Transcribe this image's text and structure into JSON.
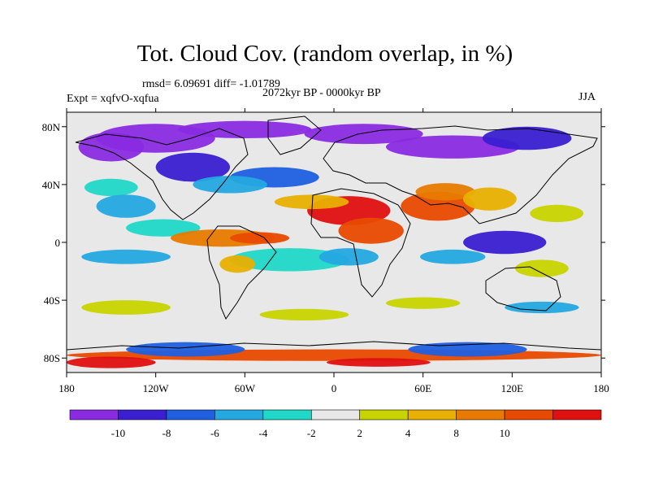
{
  "title": "Tot. Cloud Cov. (random overlap, in %)",
  "stats": "rmsd= 6.09691 diff= -1.01789",
  "period": "2072kyr BP - 0000kyr BP",
  "experiment": "Expt = xqfvO-xqfua",
  "season": "JJA",
  "map": {
    "projection": "cylindrical-equidistant",
    "lon_range": [
      -180,
      180
    ],
    "lat_range": [
      -90,
      90
    ],
    "lon_ticks": [
      {
        "value": -180,
        "label": "180"
      },
      {
        "value": -120,
        "label": "120W"
      },
      {
        "value": -60,
        "label": "60W"
      },
      {
        "value": 0,
        "label": "0"
      },
      {
        "value": 60,
        "label": "60E"
      },
      {
        "value": 120,
        "label": "120E"
      },
      {
        "value": 180,
        "label": "180"
      }
    ],
    "lat_ticks": [
      {
        "value": 80,
        "label": "80N"
      },
      {
        "value": 40,
        "label": "40N"
      },
      {
        "value": 0,
        "label": "0"
      },
      {
        "value": -40,
        "label": "40S"
      },
      {
        "value": -80,
        "label": "80S"
      }
    ]
  },
  "colorbar": {
    "colors": [
      "#8a2be2",
      "#3a1fd0",
      "#1f5fe0",
      "#24a8e0",
      "#20d8c8",
      "#e8e8e8",
      "#c8d400",
      "#e8b000",
      "#e87a00",
      "#e84a00",
      "#e01010"
    ],
    "labels": [
      "-10",
      "-8",
      "-6",
      "-4",
      "-2",
      "2",
      "4",
      "8",
      "10"
    ],
    "thresholds": [
      -10,
      -8,
      -6,
      -4,
      -2,
      2,
      4,
      8,
      10
    ]
  },
  "field_blobs": [
    {
      "lon": -120,
      "lat": 72,
      "rlon": 40,
      "rlat": 10,
      "class": 0
    },
    {
      "lon": -150,
      "lat": 66,
      "rlon": 22,
      "rlat": 10,
      "class": 0
    },
    {
      "lon": -60,
      "lat": 78,
      "rlon": 45,
      "rlat": 6,
      "class": 0
    },
    {
      "lon": 20,
      "lat": 75,
      "rlon": 40,
      "rlat": 7,
      "class": 0
    },
    {
      "lon": 80,
      "lat": 66,
      "rlon": 45,
      "rlat": 8,
      "class": 0
    },
    {
      "lon": 130,
      "lat": 72,
      "rlon": 30,
      "rlat": 8,
      "class": 1
    },
    {
      "lon": -95,
      "lat": 52,
      "rlon": 25,
      "rlat": 10,
      "class": 1
    },
    {
      "lon": -40,
      "lat": 45,
      "rlon": 30,
      "rlat": 7,
      "class": 2
    },
    {
      "lon": -70,
      "lat": 40,
      "rlon": 25,
      "rlat": 6,
      "class": 3
    },
    {
      "lon": -150,
      "lat": 38,
      "rlon": 18,
      "rlat": 6,
      "class": 4
    },
    {
      "lon": -140,
      "lat": 25,
      "rlon": 20,
      "rlat": 8,
      "class": 3
    },
    {
      "lon": -115,
      "lat": 10,
      "rlon": 25,
      "rlat": 6,
      "class": 4
    },
    {
      "lon": -140,
      "lat": -10,
      "rlon": 30,
      "rlat": 5,
      "class": 3
    },
    {
      "lon": -30,
      "lat": -12,
      "rlon": 40,
      "rlat": 8,
      "class": 4
    },
    {
      "lon": 10,
      "lat": 22,
      "rlon": 28,
      "rlat": 10,
      "class": 10
    },
    {
      "lon": 25,
      "lat": 8,
      "rlon": 22,
      "rlat": 9,
      "class": 9
    },
    {
      "lon": 70,
      "lat": 25,
      "rlon": 25,
      "rlat": 10,
      "class": 9
    },
    {
      "lon": 75,
      "lat": 35,
      "rlon": 20,
      "rlat": 6,
      "class": 8
    },
    {
      "lon": -15,
      "lat": 28,
      "rlon": 25,
      "rlat": 5,
      "class": 7
    },
    {
      "lon": 105,
      "lat": 30,
      "rlon": 18,
      "rlat": 8,
      "class": 7
    },
    {
      "lon": 150,
      "lat": 20,
      "rlon": 18,
      "rlat": 6,
      "class": 6
    },
    {
      "lon": -75,
      "lat": 3,
      "rlon": 35,
      "rlat": 6,
      "class": 8
    },
    {
      "lon": -50,
      "lat": 3,
      "rlon": 20,
      "rlat": 4,
      "class": 9
    },
    {
      "lon": -65,
      "lat": -15,
      "rlon": 12,
      "rlat": 6,
      "class": 7
    },
    {
      "lon": 10,
      "lat": -10,
      "rlon": 20,
      "rlat": 6,
      "class": 3
    },
    {
      "lon": 115,
      "lat": 0,
      "rlon": 28,
      "rlat": 8,
      "class": 1
    },
    {
      "lon": 80,
      "lat": -10,
      "rlon": 22,
      "rlat": 5,
      "class": 3
    },
    {
      "lon": 140,
      "lat": -18,
      "rlon": 18,
      "rlat": 6,
      "class": 6
    },
    {
      "lon": -140,
      "lat": -45,
      "rlon": 30,
      "rlat": 5,
      "class": 6
    },
    {
      "lon": -20,
      "lat": -50,
      "rlon": 30,
      "rlat": 4,
      "class": 6
    },
    {
      "lon": 60,
      "lat": -42,
      "rlon": 25,
      "rlat": 4,
      "class": 6
    },
    {
      "lon": 140,
      "lat": -45,
      "rlon": 25,
      "rlat": 4,
      "class": 3
    },
    {
      "lon": 0,
      "lat": -78,
      "rlon": 180,
      "rlat": 4,
      "class": 9
    },
    {
      "lon": -100,
      "lat": -74,
      "rlon": 40,
      "rlat": 5,
      "class": 2
    },
    {
      "lon": 90,
      "lat": -74,
      "rlon": 40,
      "rlat": 5,
      "class": 2
    },
    {
      "lon": -150,
      "lat": -83,
      "rlon": 30,
      "rlat": 4,
      "class": 10
    },
    {
      "lon": 30,
      "lat": -83,
      "rlon": 35,
      "rlat": 3,
      "class": 10
    }
  ]
}
